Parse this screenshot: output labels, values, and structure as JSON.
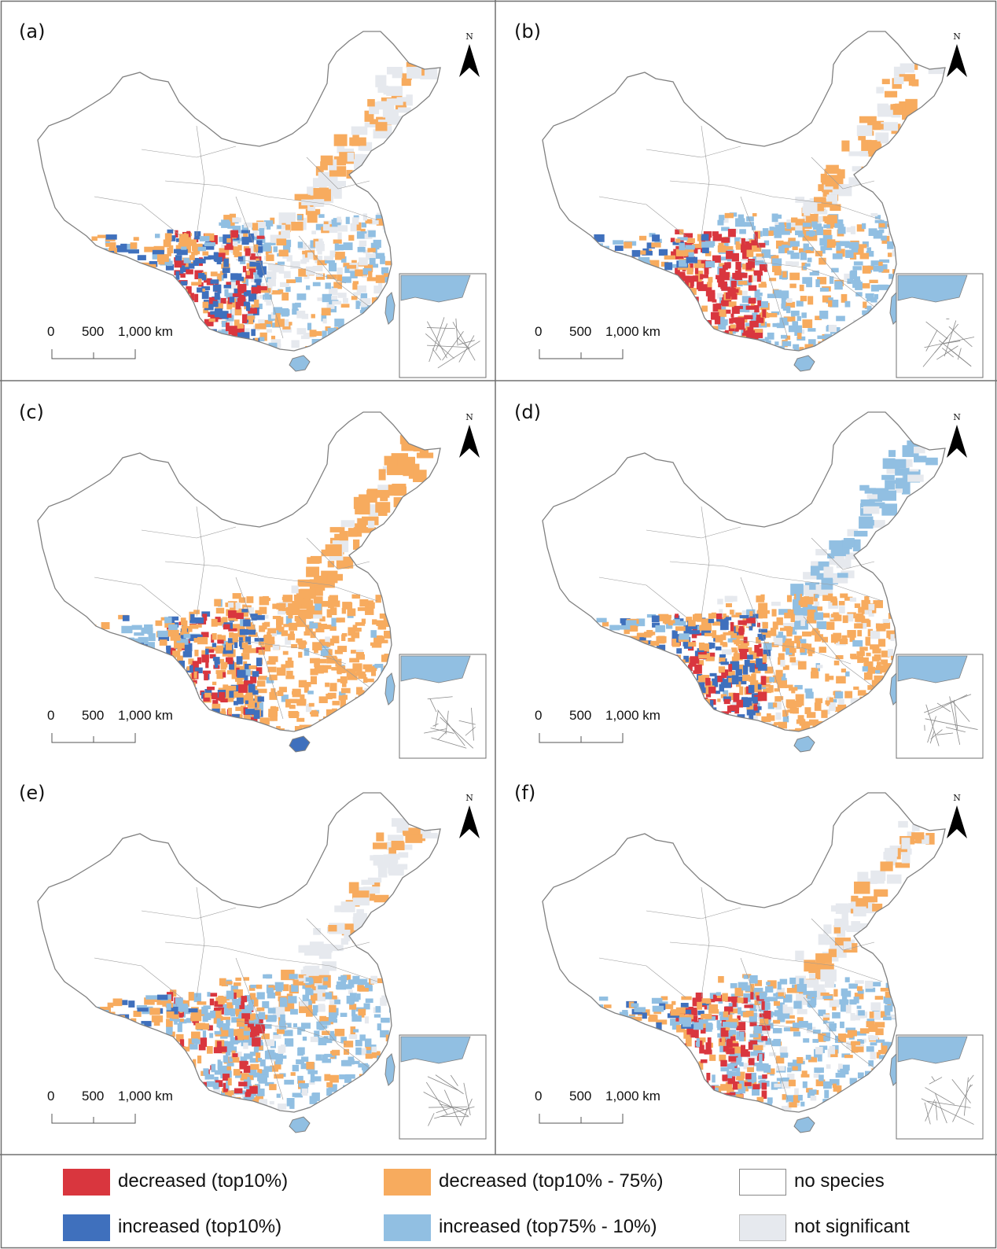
{
  "colors": {
    "decreased_top10": "#d9363e",
    "decreased_top10_75": "#f7ab5e",
    "no_species": "#ffffff",
    "increased_top10": "#3f70bd",
    "increased_top75_10": "#91bfe2",
    "not_significant": "#e6e9ee",
    "border": "#808080"
  },
  "panels": [
    {
      "label": "(a)",
      "north": "N",
      "scale": {
        "ticks": [
          "0",
          "500",
          "1,000 km"
        ]
      }
    },
    {
      "label": "(b)",
      "north": "N",
      "scale": {
        "ticks": [
          "0",
          "500",
          "1,000 km"
        ]
      }
    },
    {
      "label": "(c)",
      "north": "N",
      "scale": {
        "ticks": [
          "0",
          "500",
          "1,000 km"
        ]
      }
    },
    {
      "label": "(d)",
      "north": "N",
      "scale": {
        "ticks": [
          "0",
          "500",
          "1,000 km"
        ]
      }
    },
    {
      "label": "(e)",
      "north": "N",
      "scale": {
        "ticks": [
          "0",
          "500",
          "1,000 km"
        ]
      }
    },
    {
      "label": "(f)",
      "north": "N",
      "scale": {
        "ticks": [
          "0",
          "500",
          "1,000 km"
        ]
      }
    }
  ],
  "legend": [
    {
      "label": "decreased (top10%)",
      "color_key": "decreased_top10"
    },
    {
      "label": "decreased (top10% - 75%)",
      "color_key": "decreased_top10_75"
    },
    {
      "label": "no species",
      "color_key": "no_species"
    },
    {
      "label": "increased (top10%)",
      "color_key": "increased_top10"
    },
    {
      "label": "increased (top75% - 10%)",
      "color_key": "increased_top75_10"
    },
    {
      "label": "not significant",
      "color_key": "not_significant"
    }
  ]
}
